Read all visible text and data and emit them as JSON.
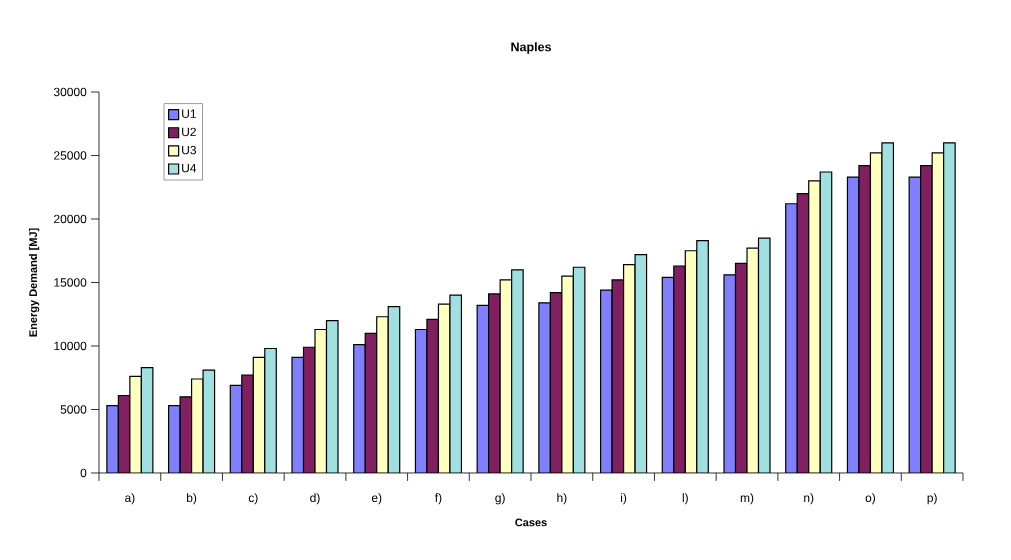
{
  "chart_data": {
    "type": "bar",
    "title": "Naples",
    "xlabel": "Cases",
    "ylabel": "Energy Demand [MJ]",
    "categories": [
      "a)",
      "b)",
      "c)",
      "d)",
      "e)",
      "f)",
      "g)",
      "h)",
      "i)",
      "l)",
      "m)",
      "n)",
      "o)",
      "p)"
    ],
    "series": [
      {
        "name": "U1",
        "color": "#8080ff",
        "values": [
          5300,
          5300,
          6900,
          9100,
          10100,
          11300,
          13200,
          13400,
          14400,
          15400,
          15600,
          21200,
          23300,
          23300
        ]
      },
      {
        "name": "U2",
        "color": "#802060",
        "values": [
          6100,
          6000,
          7700,
          9900,
          11000,
          12100,
          14100,
          14200,
          15200,
          16300,
          16500,
          22000,
          24200,
          24200
        ]
      },
      {
        "name": "U3",
        "color": "#ffffc0",
        "values": [
          7600,
          7400,
          9100,
          11300,
          12300,
          13300,
          15200,
          15500,
          16400,
          17500,
          17700,
          23000,
          25200,
          25200
        ]
      },
      {
        "name": "U4",
        "color": "#a0e0e0",
        "values": [
          8300,
          8100,
          9800,
          12000,
          13100,
          14000,
          16000,
          16200,
          17200,
          18300,
          18500,
          23700,
          26000,
          26000
        ]
      }
    ],
    "ylim": [
      0,
      30000
    ],
    "yticks": [
      0,
      5000,
      10000,
      15000,
      20000,
      25000,
      30000
    ],
    "legend": "top left",
    "grid": false
  }
}
